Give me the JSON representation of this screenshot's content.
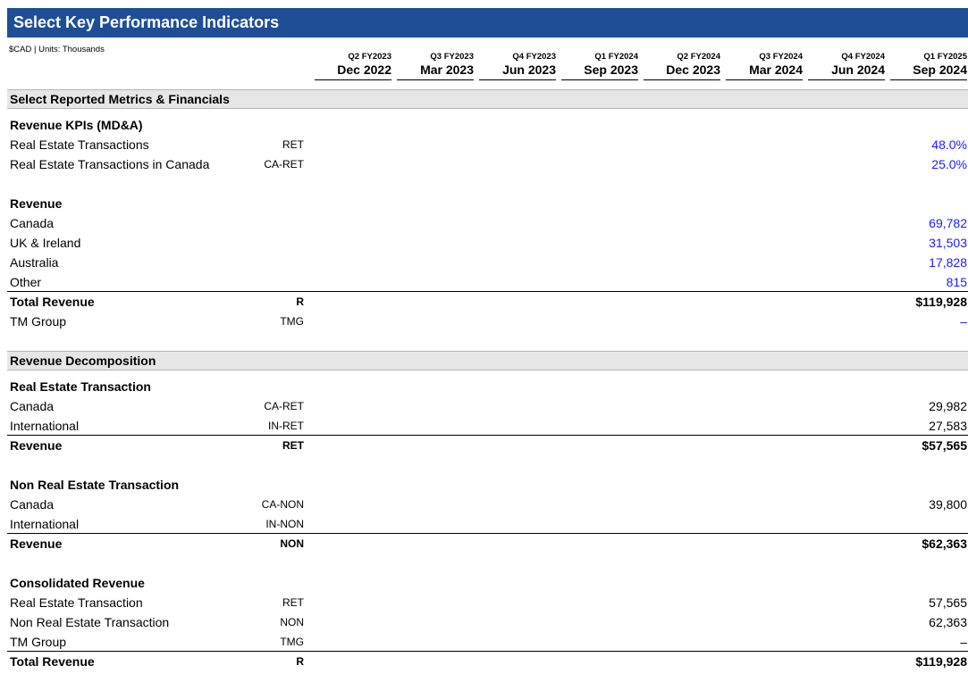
{
  "header": {
    "title": "Select Key Performance Indicators",
    "units": "$CAD | Units: Thousands"
  },
  "columns": [
    {
      "fy": "Q2 FY2023",
      "date": "Dec 2022"
    },
    {
      "fy": "Q3 FY2023",
      "date": "Mar 2023"
    },
    {
      "fy": "Q4 FY2023",
      "date": "Jun 2023"
    },
    {
      "fy": "Q1 FY2024",
      "date": "Sep 2023"
    },
    {
      "fy": "Q2 FY2024",
      "date": "Dec 2023"
    },
    {
      "fy": "Q3 FY2024",
      "date": "Mar 2024"
    },
    {
      "fy": "Q4 FY2024",
      "date": "Jun 2024"
    },
    {
      "fy": "Q1 FY2025",
      "date": "Sep 2024"
    }
  ],
  "sections": {
    "reported": "Select Reported Metrics & Financials",
    "decomposition": "Revenue Decomposition"
  },
  "rows": {
    "kpi_head": {
      "label": "Revenue KPIs (MD&A)"
    },
    "ret_pct": {
      "label": "Real Estate Transactions",
      "code": "RET",
      "value": "48.0%"
    },
    "ca_ret_pct": {
      "label": "Real Estate Transactions in Canada",
      "code": "CA-RET",
      "value": "25.0%"
    },
    "rev_head": {
      "label": "Revenue"
    },
    "canada": {
      "label": "Canada",
      "value": "69,782"
    },
    "uk": {
      "label": "UK & Ireland",
      "value": "31,503"
    },
    "australia": {
      "label": "Australia",
      "value": "17,828"
    },
    "other": {
      "label": "Other",
      "value": "815"
    },
    "total_rev": {
      "label": "Total Revenue",
      "code": "R",
      "value": "$119,928"
    },
    "tm_group": {
      "label": "TM Group",
      "code": "TMG",
      "value": "–"
    },
    "re_head": {
      "label": "Real Estate Transaction"
    },
    "re_canada": {
      "label": "Canada",
      "code": "CA-RET",
      "value": "29,982"
    },
    "re_intl": {
      "label": "International",
      "code": "IN-RET",
      "value": "27,583"
    },
    "re_rev": {
      "label": "Revenue",
      "code": "RET",
      "value": "$57,565"
    },
    "non_head": {
      "label": "Non Real Estate Transaction"
    },
    "non_canada": {
      "label": "Canada",
      "code": "CA-NON",
      "value": "39,800"
    },
    "non_intl": {
      "label": "International",
      "code": "IN-NON",
      "value": ""
    },
    "non_rev": {
      "label": "Revenue",
      "code": "NON",
      "value": "$62,363"
    },
    "cons_head": {
      "label": "Consolidated Revenue"
    },
    "cons_re": {
      "label": "Real Estate Transaction",
      "code": "RET",
      "value": "57,565"
    },
    "cons_non": {
      "label": "Non Real Estate Transaction",
      "code": "NON",
      "value": "62,363"
    },
    "cons_tmg": {
      "label": "TM Group",
      "code": "TMG",
      "value": "–"
    },
    "cons_total": {
      "label": "Total Revenue",
      "code": "R",
      "value": "$119,928"
    }
  },
  "colors": {
    "header_bg": "#1f4e96",
    "input_blue": "#1a1aff",
    "section_bg": "#e6e6e6"
  }
}
